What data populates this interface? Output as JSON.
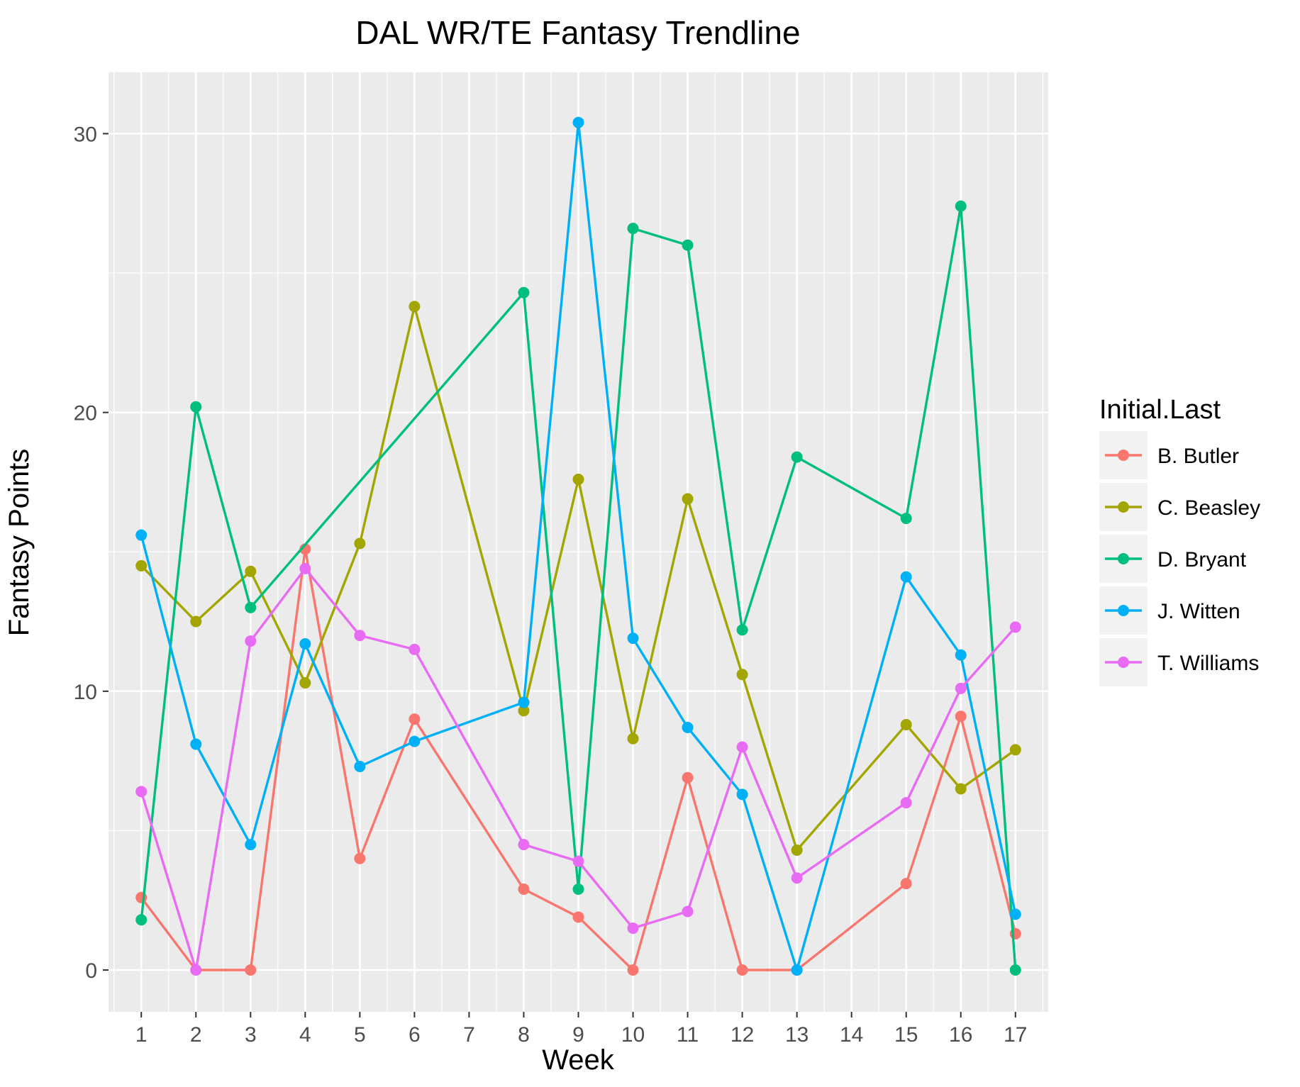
{
  "chart_data": {
    "type": "line",
    "title": "DAL WR/TE Fantasy Trendline",
    "xlabel": "Week",
    "ylabel": "Fantasy Points",
    "categories": [
      "1",
      "2",
      "3",
      "4",
      "5",
      "6",
      "7",
      "8",
      "9",
      "10",
      "11",
      "12",
      "13",
      "14",
      "15",
      "16",
      "17"
    ],
    "ylim": [
      -1.5,
      32.2
    ],
    "yticks": [
      0,
      10,
      20,
      30
    ],
    "grid": true,
    "legend": {
      "title": "Initial.Last",
      "position": "right"
    },
    "series": [
      {
        "name": "B. Butler",
        "color": "#F8766D",
        "points": [
          {
            "x": "1",
            "y": 2.6
          },
          {
            "x": "2",
            "y": 0
          },
          {
            "x": "3",
            "y": 0
          },
          {
            "x": "4",
            "y": 15.1
          },
          {
            "x": "5",
            "y": 4.0
          },
          {
            "x": "6",
            "y": 9.0
          },
          {
            "x": "8",
            "y": 2.9
          },
          {
            "x": "9",
            "y": 1.9
          },
          {
            "x": "10",
            "y": 0
          },
          {
            "x": "11",
            "y": 6.9
          },
          {
            "x": "12",
            "y": 0
          },
          {
            "x": "13",
            "y": 0
          },
          {
            "x": "15",
            "y": 3.1
          },
          {
            "x": "16",
            "y": 9.1
          },
          {
            "x": "17",
            "y": 1.3
          }
        ]
      },
      {
        "name": "C. Beasley",
        "color": "#A3A500",
        "points": [
          {
            "x": "1",
            "y": 14.5
          },
          {
            "x": "2",
            "y": 12.5
          },
          {
            "x": "3",
            "y": 14.3
          },
          {
            "x": "4",
            "y": 10.3
          },
          {
            "x": "5",
            "y": 15.3
          },
          {
            "x": "6",
            "y": 23.8
          },
          {
            "x": "8",
            "y": 9.3
          },
          {
            "x": "9",
            "y": 17.6
          },
          {
            "x": "10",
            "y": 8.3
          },
          {
            "x": "11",
            "y": 16.9
          },
          {
            "x": "12",
            "y": 10.6
          },
          {
            "x": "13",
            "y": 4.3
          },
          {
            "x": "15",
            "y": 8.8
          },
          {
            "x": "16",
            "y": 6.5
          },
          {
            "x": "17",
            "y": 7.9
          }
        ]
      },
      {
        "name": "D. Bryant",
        "color": "#00BF7D",
        "points": [
          {
            "x": "1",
            "y": 1.8
          },
          {
            "x": "2",
            "y": 20.2
          },
          {
            "x": "3",
            "y": 13.0
          },
          {
            "x": "8",
            "y": 24.3
          },
          {
            "x": "9",
            "y": 2.9
          },
          {
            "x": "10",
            "y": 26.6
          },
          {
            "x": "11",
            "y": 26.0
          },
          {
            "x": "12",
            "y": 12.2
          },
          {
            "x": "13",
            "y": 18.4
          },
          {
            "x": "15",
            "y": 16.2
          },
          {
            "x": "16",
            "y": 27.4
          },
          {
            "x": "17",
            "y": 0
          }
        ]
      },
      {
        "name": "J. Witten",
        "color": "#00B0F6",
        "points": [
          {
            "x": "1",
            "y": 15.6
          },
          {
            "x": "2",
            "y": 8.1
          },
          {
            "x": "3",
            "y": 4.5
          },
          {
            "x": "4",
            "y": 11.7
          },
          {
            "x": "5",
            "y": 7.3
          },
          {
            "x": "6",
            "y": 8.2
          },
          {
            "x": "8",
            "y": 9.6
          },
          {
            "x": "9",
            "y": 30.4
          },
          {
            "x": "10",
            "y": 11.9
          },
          {
            "x": "11",
            "y": 8.7
          },
          {
            "x": "12",
            "y": 6.3
          },
          {
            "x": "13",
            "y": 0
          },
          {
            "x": "15",
            "y": 14.1
          },
          {
            "x": "16",
            "y": 11.3
          },
          {
            "x": "17",
            "y": 2.0
          }
        ]
      },
      {
        "name": "T. Williams",
        "color": "#E76BF3",
        "points": [
          {
            "x": "1",
            "y": 6.4
          },
          {
            "x": "2",
            "y": 0
          },
          {
            "x": "3",
            "y": 11.8
          },
          {
            "x": "4",
            "y": 14.4
          },
          {
            "x": "5",
            "y": 12.0
          },
          {
            "x": "6",
            "y": 11.5
          },
          {
            "x": "8",
            "y": 4.5
          },
          {
            "x": "9",
            "y": 3.9
          },
          {
            "x": "10",
            "y": 1.5
          },
          {
            "x": "11",
            "y": 2.1
          },
          {
            "x": "12",
            "y": 8.0
          },
          {
            "x": "13",
            "y": 3.3
          },
          {
            "x": "15",
            "y": 6.0
          },
          {
            "x": "16",
            "y": 10.1
          },
          {
            "x": "17",
            "y": 12.3
          }
        ]
      }
    ]
  }
}
